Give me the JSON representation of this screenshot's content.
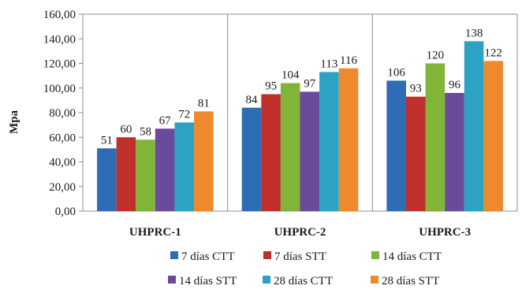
{
  "chart_data": {
    "type": "bar",
    "categories": [
      "UHPRC-1",
      "UHPRC-2",
      "UHPRC-3"
    ],
    "ylabel": "Mpa",
    "xlabel": "",
    "ylim": [
      0,
      160
    ],
    "yticks": [
      "0,00",
      "20,00",
      "40,00",
      "60,00",
      "80,00",
      "100,00",
      "120,00",
      "140,00",
      "160,00"
    ],
    "ytick_values": [
      0,
      20,
      40,
      60,
      80,
      100,
      120,
      140,
      160
    ],
    "grid": "vertical separators between categories",
    "legend_position": "bottom",
    "series": [
      {
        "name": "7 días CTT",
        "color": "#2e6db5",
        "values": [
          51,
          84,
          106
        ]
      },
      {
        "name": "7 días STT",
        "color": "#c0302b",
        "values": [
          60,
          95,
          93
        ]
      },
      {
        "name": "14 días CTT",
        "color": "#82b43a",
        "values": [
          58,
          104,
          120
        ]
      },
      {
        "name": "14 días STT",
        "color": "#6a4a9a",
        "values": [
          67,
          97,
          96
        ]
      },
      {
        "name": "28 días CTT",
        "color": "#2ea2c3",
        "values": [
          72,
          113,
          138
        ]
      },
      {
        "name": "28 días STT",
        "color": "#ee8a2d",
        "values": [
          81,
          116,
          122
        ]
      }
    ]
  }
}
